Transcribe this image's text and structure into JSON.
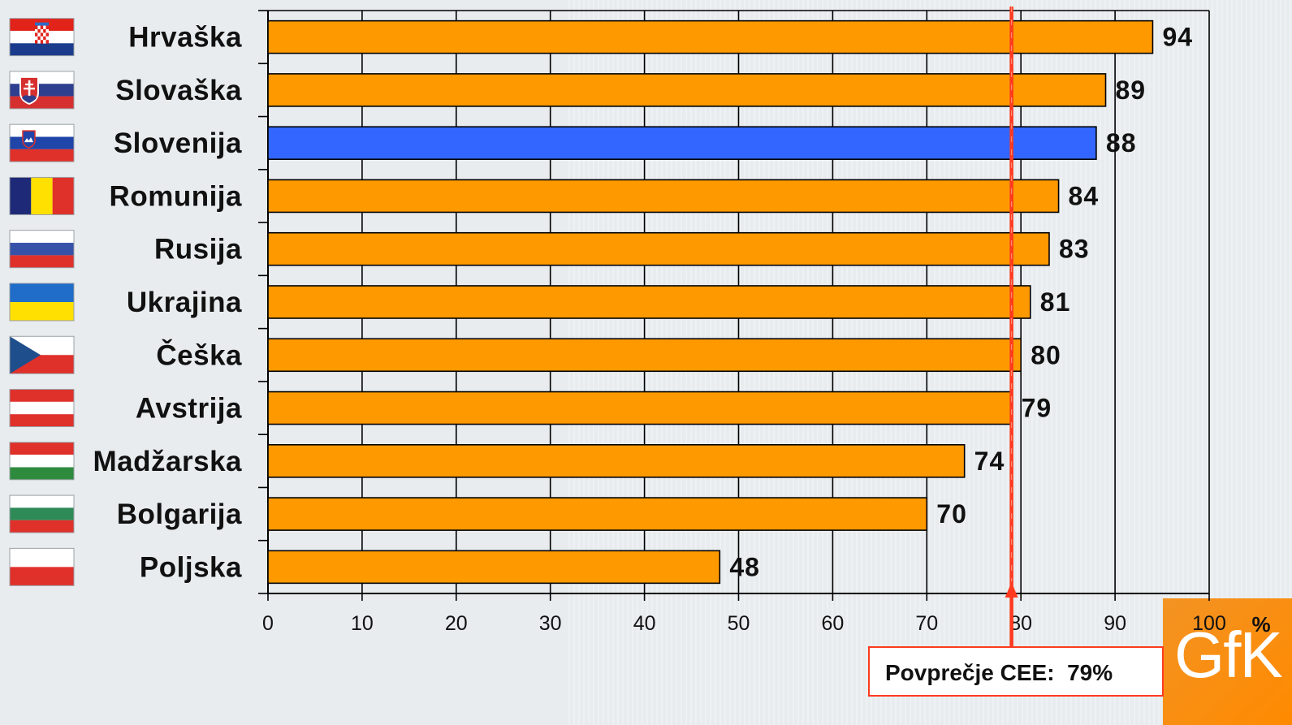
{
  "chart_data": {
    "type": "bar",
    "orientation": "horizontal",
    "categories": [
      "Hrvaška",
      "Slovaška",
      "Slovenija",
      "Romunija",
      "Rusija",
      "Ukrajina",
      "Češka",
      "Avstrija",
      "Madžarska",
      "Bolgarija",
      "Poljska"
    ],
    "values": [
      94,
      89,
      88,
      84,
      83,
      81,
      80,
      79,
      74,
      70,
      48
    ],
    "category_icons": [
      "croatia-flag-icon",
      "slovakia-flag-icon",
      "slovenia-flag-icon",
      "romania-flag-icon",
      "russia-flag-icon",
      "ukraine-flag-icon",
      "czech-flag-icon",
      "austria-flag-icon",
      "hungary-flag-icon",
      "bulgaria-flag-icon",
      "poland-flag-icon"
    ],
    "bar_colors": [
      "#FF9900",
      "#FF9900",
      "#3366FF",
      "#FF9900",
      "#FF9900",
      "#FF9900",
      "#FF9900",
      "#FF9900",
      "#FF9900",
      "#FF9900",
      "#FF9900"
    ],
    "xlim": [
      0,
      100
    ],
    "xticks": [
      0,
      10,
      20,
      30,
      40,
      50,
      60,
      70,
      80,
      90,
      100
    ],
    "x_unit": "%",
    "grid": true,
    "reference_line": {
      "value": 79,
      "label": "Povprečje CEE:  79%",
      "color": "#FF3A1F"
    }
  },
  "logo": {
    "text": "GfK",
    "color": "#F39323"
  }
}
